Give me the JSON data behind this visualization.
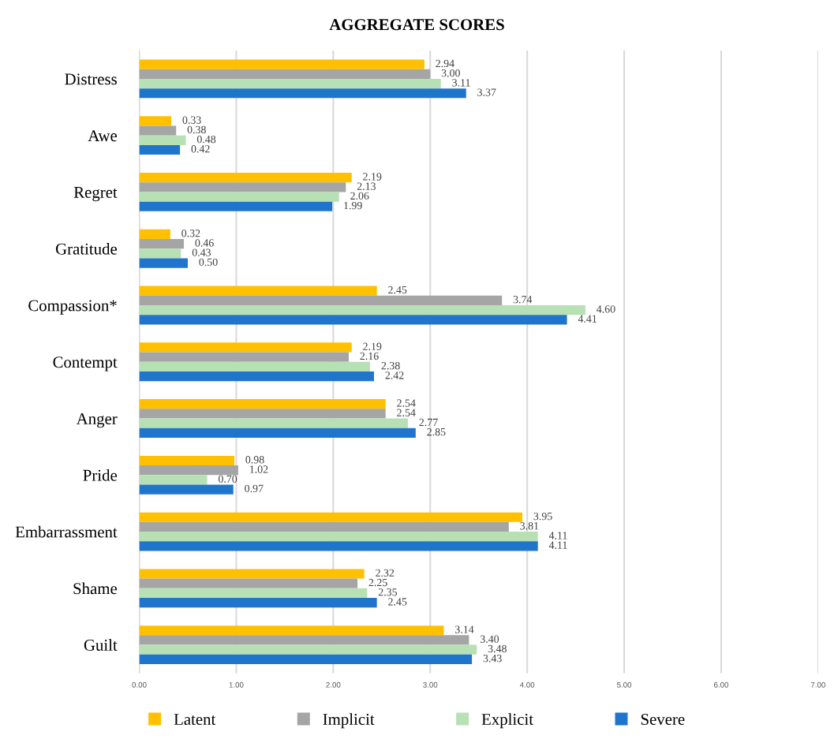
{
  "chart_data": {
    "type": "bar",
    "orientation": "horizontal",
    "title": "AGGREGATE SCORES",
    "categories": [
      "Distress",
      "Awe",
      "Regret",
      "Gratitude",
      "Compassion*",
      "Contempt",
      "Anger",
      "Pride",
      "Embarrassment",
      "Shame",
      "Guilt"
    ],
    "series": [
      {
        "name": "Latent",
        "color": "#ffc000",
        "values": [
          2.94,
          0.33,
          2.19,
          0.32,
          2.45,
          2.19,
          2.54,
          0.98,
          3.95,
          2.32,
          3.14
        ],
        "value_labels": [
          "2.94",
          "0.33",
          "2.19",
          "0.32",
          "2.45",
          "2.19",
          "2.54",
          "0.98",
          "3.95",
          "2.32",
          "3.14"
        ]
      },
      {
        "name": "Implicit",
        "color": "#a5a5a5",
        "values": [
          3.0,
          0.38,
          2.13,
          0.46,
          3.74,
          2.16,
          2.54,
          1.02,
          3.81,
          2.25,
          3.4
        ],
        "value_labels": [
          "3.00",
          "0.38",
          "2.13",
          "0.46",
          "3.74",
          "2.16",
          "2.54",
          "1.02",
          "3.81",
          "2.25",
          "3.40"
        ]
      },
      {
        "name": "Explicit",
        "color": "#b7e1b5",
        "values": [
          3.11,
          0.48,
          2.06,
          0.43,
          4.6,
          2.38,
          2.77,
          0.7,
          4.11,
          2.35,
          3.48
        ],
        "value_labels": [
          "3.11",
          "0.48",
          "2.06",
          "0.43",
          "4.60",
          "2.38",
          "2.77",
          "0.70",
          "4.11",
          "2.35",
          "3.48"
        ]
      },
      {
        "name": "Severe",
        "color": "#1f74cc",
        "values": [
          3.37,
          0.42,
          1.99,
          0.5,
          4.41,
          2.42,
          2.85,
          0.97,
          4.11,
          2.45,
          3.43
        ],
        "value_labels": [
          "3.37",
          "0.42",
          "1.99",
          "0.50",
          "4.41",
          "2.42",
          "2.85",
          "0.97",
          "4.11",
          "2.45",
          "3.43"
        ]
      }
    ],
    "xlim": [
      0,
      7
    ],
    "xticks": [
      {
        "value": 0,
        "label": "0.00"
      },
      {
        "value": 1,
        "label": "1.00"
      },
      {
        "value": 2,
        "label": "2.00"
      },
      {
        "value": 3,
        "label": "3.00"
      },
      {
        "value": 4,
        "label": "4.00"
      },
      {
        "value": 5,
        "label": "5.00"
      },
      {
        "value": 6,
        "label": "6.00"
      },
      {
        "value": 7,
        "label": "7.00"
      }
    ],
    "grid": "x",
    "legend": "bottom"
  }
}
